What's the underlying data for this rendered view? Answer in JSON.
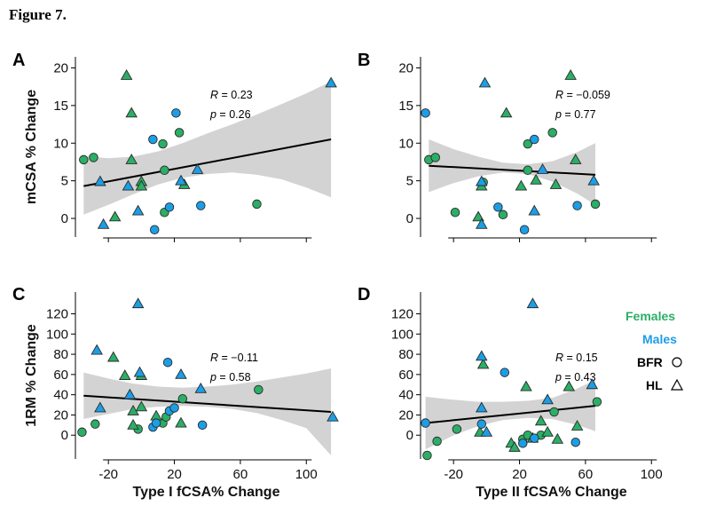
{
  "figure_title": "Figure 7.",
  "colors": {
    "females": "#2bae66",
    "males": "#1c9ee6",
    "band": "#d3d3d3"
  },
  "legend": {
    "females": "Females",
    "males": "Males",
    "bfr": "BFR",
    "hl": "HL"
  },
  "chart_data": [
    {
      "panel": "A",
      "type": "scatter",
      "title": "",
      "ylabel": "mCSA % Change",
      "xlabel": "",
      "xlim": [
        -40,
        123
      ],
      "ylim": [
        -2,
        21
      ],
      "yticks": [
        0,
        5,
        10,
        15,
        20
      ],
      "xticks": [
        -20,
        20,
        60,
        100
      ],
      "show_x_labels": false,
      "stats": {
        "R": "0.23",
        "p": "0.26"
      },
      "fit": {
        "x": [
          -35,
          115
        ],
        "y": [
          4.3,
          10.5
        ]
      },
      "band": {
        "x": [
          -35,
          -20,
          -5,
          10,
          25,
          40,
          55,
          70,
          85,
          100,
          115
        ],
        "upper": [
          8.3,
          8.0,
          8.2,
          8.9,
          10.0,
          11.3,
          12.5,
          13.8,
          15.2,
          16.6,
          18.2
        ],
        "lower": [
          0.5,
          1.8,
          3.2,
          4.5,
          5.4,
          5.9,
          6.1,
          5.8,
          5.2,
          4.1,
          2.8
        ]
      },
      "series": [
        {
          "name": "Female BFR",
          "sex": "female",
          "marker": "circle",
          "points": [
            [
              -35,
              7.8
            ],
            [
              -29,
              8.1
            ],
            [
              13,
              9.9
            ],
            [
              14,
              6.4
            ],
            [
              23,
              11.4
            ],
            [
              14,
              0.8
            ],
            [
              70,
              1.9
            ]
          ]
        },
        {
          "name": "Female HL",
          "marker": "triangle",
          "sex": "female",
          "points": [
            [
              -9,
              19
            ],
            [
              -6,
              14
            ],
            [
              -6,
              7.8
            ],
            [
              0,
              4.9
            ],
            [
              0,
              4.3
            ],
            [
              26,
              4.5
            ],
            [
              -16,
              0.2
            ]
          ]
        },
        {
          "name": "Male BFR",
          "sex": "male",
          "marker": "circle",
          "points": [
            [
              7,
              10.5
            ],
            [
              21,
              14
            ],
            [
              36,
              1.7
            ],
            [
              17,
              1.5
            ],
            [
              8,
              -1.5
            ]
          ]
        },
        {
          "name": "Male HL",
          "sex": "male",
          "marker": "triangle",
          "points": [
            [
              -25,
              4.9
            ],
            [
              -8,
              4.3
            ],
            [
              -2,
              1
            ],
            [
              34,
              6.5
            ],
            [
              24,
              5
            ],
            [
              -23,
              -0.8
            ],
            [
              115,
              18
            ]
          ]
        }
      ]
    },
    {
      "panel": "B",
      "type": "scatter",
      "title": "",
      "ylabel": "",
      "xlabel": "",
      "xlim": [
        -40,
        123
      ],
      "ylim": [
        -2,
        21
      ],
      "yticks": [
        0,
        5,
        10,
        15,
        20
      ],
      "xticks": [
        -20,
        20,
        60,
        100
      ],
      "show_x_labels": false,
      "stats": {
        "R": "−0.059",
        "p": "0.77"
      },
      "fit": {
        "x": [
          -35,
          66
        ],
        "y": [
          7.0,
          5.8
        ]
      },
      "band": {
        "x": [
          -35,
          -20,
          -5,
          10,
          25,
          40,
          55,
          66
        ],
        "upper": [
          10.5,
          9.2,
          8.2,
          7.4,
          7.2,
          7.6,
          8.8,
          10.0
        ],
        "lower": [
          3.5,
          4.7,
          5.6,
          6.1,
          5.9,
          4.9,
          3.3,
          1.8
        ]
      },
      "series": [
        {
          "name": "Female BFR",
          "sex": "female",
          "marker": "circle",
          "points": [
            [
              -35,
              7.8
            ],
            [
              -31,
              8.1
            ],
            [
              -19,
              0.8
            ],
            [
              -2,
              4.8
            ],
            [
              10,
              0.5
            ],
            [
              25,
              9.9
            ],
            [
              25,
              6.4
            ],
            [
              40,
              11.4
            ],
            [
              66,
              1.9
            ]
          ]
        },
        {
          "name": "Female HL",
          "sex": "female",
          "marker": "triangle",
          "points": [
            [
              -3,
              4.3
            ],
            [
              -5,
              0.2
            ],
            [
              12,
              14
            ],
            [
              21,
              4.3
            ],
            [
              30,
              5.1
            ],
            [
              42,
              4.5
            ],
            [
              51,
              19
            ],
            [
              54,
              7.8
            ]
          ]
        },
        {
          "name": "Male BFR",
          "sex": "male",
          "marker": "circle",
          "points": [
            [
              -37,
              14
            ],
            [
              7,
              1.5
            ],
            [
              23,
              -1.5
            ],
            [
              29,
              10.5
            ],
            [
              55,
              1.7
            ]
          ]
        },
        {
          "name": "Male HL",
          "sex": "male",
          "marker": "triangle",
          "points": [
            [
              -1,
              18
            ],
            [
              -3,
              4.9
            ],
            [
              -3,
              -0.8
            ],
            [
              29,
              1
            ],
            [
              34,
              6.5
            ],
            [
              65,
              5
            ]
          ]
        }
      ]
    },
    {
      "panel": "C",
      "type": "scatter",
      "title": "",
      "ylabel": "1RM % Change",
      "xlabel": "Type I fCSA% Change",
      "xlim": [
        -40,
        123
      ],
      "ylim": [
        -20,
        138
      ],
      "yticks": [
        0,
        20,
        40,
        60,
        80,
        100,
        120
      ],
      "xticks": [
        -20,
        20,
        60,
        100
      ],
      "show_x_labels": true,
      "stats": {
        "R": "−0.11",
        "p": "0.58"
      },
      "fit": {
        "x": [
          -35,
          115
        ],
        "y": [
          39,
          23
        ]
      },
      "band": {
        "x": [
          -35,
          -20,
          -5,
          10,
          25,
          40,
          55,
          70,
          85,
          100,
          115
        ],
        "upper": [
          62,
          56,
          51,
          48,
          47,
          48,
          50,
          53,
          57,
          61,
          66
        ],
        "lower": [
          16,
          21,
          26,
          28,
          29,
          28,
          26,
          22,
          15,
          7,
          -20
        ]
      },
      "series": [
        {
          "name": "Female BFR",
          "sex": "female",
          "marker": "circle",
          "points": [
            [
              -36,
              3
            ],
            [
              -28,
              11
            ],
            [
              -2,
              6
            ],
            [
              13,
              12
            ],
            [
              15,
              18
            ],
            [
              25,
              36
            ],
            [
              71,
              45
            ]
          ]
        },
        {
          "name": "Female HL",
          "sex": "female",
          "marker": "triangle",
          "points": [
            [
              -17,
              77
            ],
            [
              -10,
              59
            ],
            [
              -5,
              24
            ],
            [
              -5,
              10
            ],
            [
              0,
              28
            ],
            [
              0,
              59
            ],
            [
              9,
              19
            ],
            [
              24,
              12
            ]
          ]
        },
        {
          "name": "Male BFR",
          "sex": "male",
          "marker": "circle",
          "points": [
            [
              16,
              72
            ],
            [
              7,
              8
            ],
            [
              9,
              12
            ],
            [
              17,
              24
            ],
            [
              20,
              27
            ],
            [
              37,
              10
            ]
          ]
        },
        {
          "name": "Male HL",
          "sex": "male",
          "marker": "triangle",
          "points": [
            [
              -27,
              84
            ],
            [
              -25,
              27
            ],
            [
              -7,
              40
            ],
            [
              -2,
              130
            ],
            [
              -1,
              62
            ],
            [
              24,
              60
            ],
            [
              36,
              46
            ],
            [
              116,
              18
            ]
          ]
        }
      ]
    },
    {
      "panel": "D",
      "type": "scatter",
      "title": "",
      "ylabel": "",
      "xlabel": "Type II fCSA% Change",
      "xlim": [
        -40,
        123
      ],
      "ylim": [
        -20,
        138
      ],
      "yticks": [
        0,
        20,
        40,
        60,
        80,
        100,
        120
      ],
      "xticks": [
        -20,
        20,
        60,
        100
      ],
      "show_x_labels": true,
      "stats": {
        "R": "0.15",
        "p": "0.43"
      },
      "fit": {
        "x": [
          -37,
          66
        ],
        "y": [
          12,
          29
        ]
      },
      "band": {
        "x": [
          -37,
          -20,
          -5,
          10,
          25,
          40,
          55,
          66
        ],
        "upper": [
          38,
          35,
          33,
          33,
          34,
          37,
          46,
          55
        ],
        "lower": [
          -14,
          0,
          9,
          15,
          17,
          16,
          10,
          4
        ]
      },
      "series": [
        {
          "name": "Female BFR",
          "sex": "female",
          "marker": "circle",
          "points": [
            [
              -36,
              -20
            ],
            [
              -30,
              -6
            ],
            [
              -18,
              6
            ],
            [
              22,
              -4
            ],
            [
              25,
              0
            ],
            [
              33,
              0
            ],
            [
              41,
              23
            ],
            [
              67,
              33
            ]
          ]
        },
        {
          "name": "Female HL",
          "sex": "female",
          "marker": "triangle",
          "points": [
            [
              -2,
              70
            ],
            [
              -4,
              3
            ],
            [
              15,
              -8
            ],
            [
              17,
              -12
            ],
            [
              24,
              48
            ],
            [
              28,
              -3
            ],
            [
              33,
              14
            ],
            [
              37,
              3
            ],
            [
              43,
              -4
            ],
            [
              50,
              48
            ],
            [
              55,
              9
            ]
          ]
        },
        {
          "name": "Male BFR",
          "sex": "male",
          "marker": "circle",
          "points": [
            [
              -37,
              12
            ],
            [
              -3,
              11
            ],
            [
              11,
              62
            ],
            [
              22,
              -8
            ],
            [
              29,
              -3
            ],
            [
              54,
              -7
            ]
          ]
        },
        {
          "name": "Male HL",
          "sex": "male",
          "marker": "triangle",
          "points": [
            [
              -3,
              78
            ],
            [
              -3,
              27
            ],
            [
              0,
              3
            ],
            [
              28,
              130
            ],
            [
              37,
              35
            ],
            [
              64,
              50
            ]
          ]
        }
      ]
    }
  ]
}
